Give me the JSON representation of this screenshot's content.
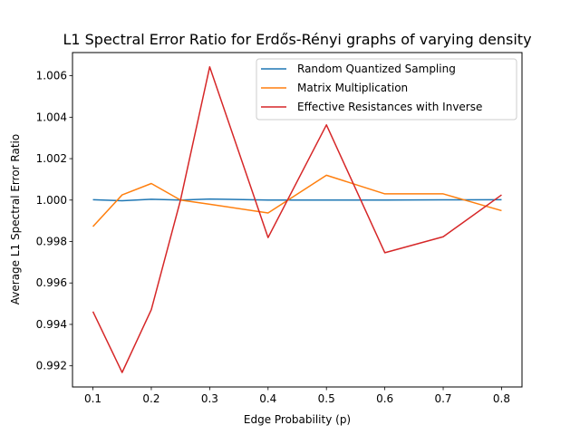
{
  "chart_data": {
    "type": "line",
    "title": "L1 Spectral Error Ratio for Erdős-Rényi graphs of varying density",
    "xlabel": "Edge Probability (p)",
    "ylabel": "Average L1 Spectral Error Ratio",
    "xlim": [
      0.065,
      0.835
    ],
    "ylim": [
      0.99098,
      1.00712
    ],
    "xticks": [
      0.1,
      0.2,
      0.3,
      0.4,
      0.5,
      0.6,
      0.7,
      0.8
    ],
    "xtick_labels": [
      "0.1",
      "0.2",
      "0.3",
      "0.4",
      "0.5",
      "0.6",
      "0.7",
      "0.8"
    ],
    "yticks": [
      0.992,
      0.994,
      0.996,
      0.998,
      1.0,
      1.002,
      1.004,
      1.006
    ],
    "ytick_labels": [
      "0.992",
      "0.994",
      "0.996",
      "0.998",
      "1.000",
      "1.002",
      "1.004",
      "1.006"
    ],
    "x": [
      0.1,
      0.15,
      0.2,
      0.25,
      0.3,
      0.4,
      0.5,
      0.6,
      0.7,
      0.8
    ],
    "legend_position": "top-right",
    "grid": false,
    "series": [
      {
        "name": "Random Quantized Sampling",
        "color": "#1f77b4",
        "values": [
          1.00002,
          0.99997,
          1.00004,
          1.0,
          1.00005,
          1.0,
          1.0,
          1.0,
          1.00001,
          1.00002
        ]
      },
      {
        "name": "Matrix Multiplication",
        "color": "#ff7f0e",
        "values": [
          0.99872,
          1.00025,
          1.0008,
          1.0,
          0.9998,
          0.99938,
          1.0012,
          1.0003,
          1.0003,
          0.99949
        ]
      },
      {
        "name": "Effective Resistances with Inverse",
        "color": "#d62728",
        "values": [
          0.99462,
          0.99168,
          0.99471,
          1.0,
          1.00643,
          0.99819,
          1.00363,
          0.99746,
          0.99823,
          1.00025
        ]
      }
    ]
  }
}
